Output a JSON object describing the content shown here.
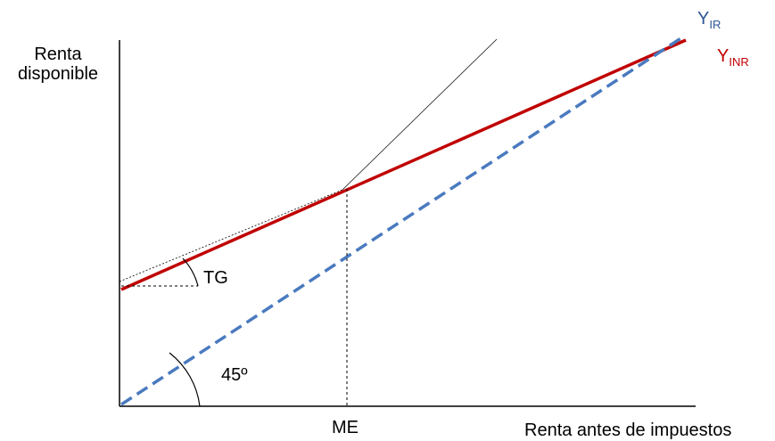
{
  "diagram": {
    "y_axis_label_line1": "Renta",
    "y_axis_label_line2": "disponible",
    "x_axis_label": "Renta antes de impuestos",
    "curve_ir": {
      "main": "Y",
      "sub": "IR",
      "color": "#2f5597"
    },
    "curve_inr": {
      "main": "Y",
      "sub": "INR",
      "color": "#c00000"
    },
    "tg_label": "TG",
    "angle_label": "45º",
    "x_marker_label": "ME",
    "line_colors": {
      "dashed_blue": "#4a7abf",
      "solid_red": "#c00000"
    }
  }
}
